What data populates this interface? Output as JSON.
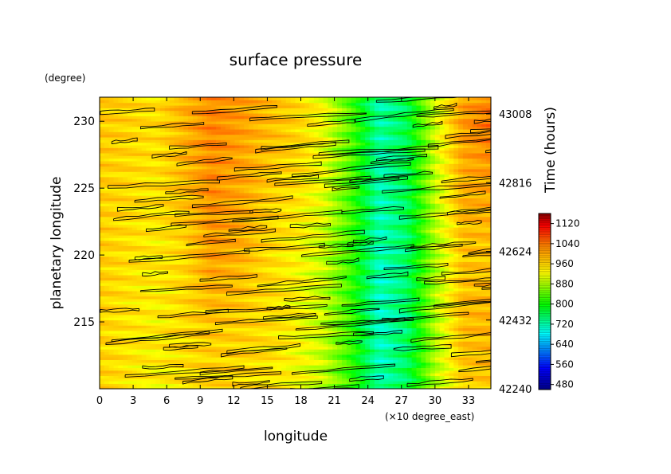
{
  "chart_data": {
    "type": "heatmap",
    "title": "surface pressure",
    "xlabel": "longitude",
    "x_unit": "(×10 degree_east)",
    "x_ticks": [
      0,
      3,
      6,
      9,
      12,
      15,
      18,
      21,
      24,
      27,
      30,
      33
    ],
    "xlim": [
      0,
      35
    ],
    "ylabel": "planetary longitude",
    "y_unit": "(degree)",
    "y_ticks": [
      215,
      220,
      225,
      230
    ],
    "ylim": [
      210,
      231.8
    ],
    "y2label": "Time (hours)",
    "y2_ticks": [
      42240,
      42432,
      42624,
      42816,
      43008
    ],
    "colorbar": {
      "range": [
        460,
        1160
      ],
      "ticks": [
        480,
        560,
        640,
        720,
        800,
        880,
        960,
        1040,
        1120
      ],
      "colors": [
        "#00008b",
        "#0000ff",
        "#00ffff",
        "#00ff00",
        "#ffff00",
        "#ff8000",
        "#ff0000",
        "#8b0000"
      ]
    },
    "field": {
      "x_samples": [
        0,
        2.5,
        5,
        7.5,
        10,
        12.5,
        15,
        17.5,
        20,
        22.5,
        25,
        27.5,
        30,
        32.5,
        35
      ],
      "y_samples": [
        210,
        215,
        220,
        225,
        230,
        231.8
      ],
      "values": [
        [
          960,
          945,
          930,
          945,
          955,
          955,
          945,
          925,
          890,
          820,
          720,
          760,
          880,
          960,
          970
        ],
        [
          960,
          945,
          935,
          955,
          970,
          965,
          950,
          930,
          895,
          820,
          710,
          750,
          880,
          980,
          990
        ],
        [
          965,
          950,
          935,
          955,
          1010,
          990,
          955,
          930,
          895,
          820,
          715,
          750,
          880,
          970,
          975
        ],
        [
          965,
          955,
          945,
          975,
          1020,
          1000,
          970,
          950,
          910,
          830,
          720,
          760,
          890,
          990,
          1000
        ],
        [
          970,
          960,
          950,
          990,
          1030,
          1010,
          985,
          960,
          920,
          835,
          725,
          765,
          900,
          1010,
          1040
        ],
        [
          965,
          955,
          950,
          990,
          1020,
          1010,
          980,
          955,
          920,
          830,
          720,
          760,
          890,
          1000,
          1030
        ]
      ]
    }
  }
}
